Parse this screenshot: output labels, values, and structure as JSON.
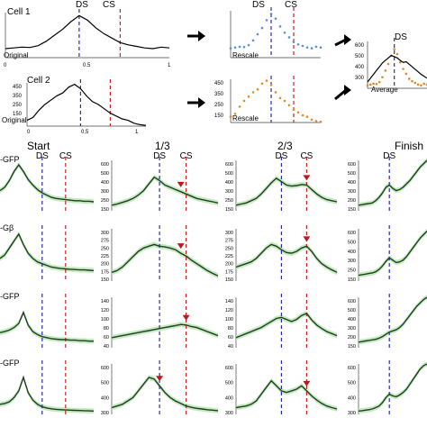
{
  "colors": {
    "axis": "#444444",
    "trace": "#000000",
    "ds_line": "#2a2ab0",
    "cs_line": "#cc2222",
    "rescale_blue": "#5b8fd6",
    "rescale_orange": "#e08a2a",
    "sem_band": "#b7e4b2",
    "mean_trace": "#1d3f1d",
    "arrowhead_marker": "#c01818"
  },
  "top": {
    "cell1": {
      "label": "Cell 1",
      "note": "Original",
      "ds": "DS",
      "cs": "CS",
      "xticks": [
        "0",
        "0.5",
        "1"
      ]
    },
    "cell2": {
      "label": "Cell 2",
      "note": "Original",
      "yticks": [
        "450",
        "350",
        "250",
        "150"
      ],
      "xticks": [
        "0",
        "0.5",
        "1"
      ]
    },
    "rescale1": {
      "note": "Rescale",
      "ds": "DS",
      "cs": "CS"
    },
    "rescale2": {
      "note": "Rescale",
      "yticks": [
        "450",
        "350",
        "250",
        "150"
      ]
    },
    "average": {
      "note": "Average",
      "ds": "DS",
      "yticks": [
        "600",
        "500",
        "400",
        "300"
      ]
    }
  },
  "grid": {
    "columns": [
      {
        "title": "Start",
        "ds": "DS",
        "cs": "CS"
      },
      {
        "title": "1/3",
        "ds": "DS",
        "cs": "CS"
      },
      {
        "title": "2/3",
        "ds": "DS",
        "cs": "CS"
      },
      {
        "title": "Finish",
        "ds": "DS"
      }
    ],
    "rows": [
      {
        "label": "-GFP",
        "yticks": [
          "600",
          "500",
          "400",
          "300",
          "250",
          "150"
        ],
        "yticks_short": [
          "600",
          "500",
          "400",
          "300",
          "200",
          "150"
        ]
      },
      {
        "label": "-Gβ",
        "yticks": [
          "300",
          "275",
          "250",
          "225",
          "200",
          "175",
          "150"
        ],
        "yticks_short": [
          "600",
          "500",
          "400",
          "300",
          "250",
          "150"
        ]
      },
      {
        "label": "-GFP",
        "yticks": [
          "140",
          "120",
          "100",
          "80",
          "60",
          "40"
        ],
        "yticks_short": [
          "600",
          "500",
          "400",
          "300",
          "200",
          "150"
        ]
      },
      {
        "label": "-GFP",
        "yticks": [
          "600",
          "500",
          "400",
          "300"
        ],
        "yticks_short": [
          "600",
          "500",
          "400",
          "300"
        ]
      }
    ]
  },
  "chart_data": {
    "type": "line",
    "x": [
      0,
      0.05,
      0.1,
      0.15,
      0.2,
      0.25,
      0.3,
      0.35,
      0.4,
      0.45,
      0.5,
      0.55,
      0.6,
      0.65,
      0.7,
      0.75,
      0.8,
      0.85,
      0.9,
      0.95,
      1
    ],
    "ds_position": 0.45,
    "cs_position": 0.7,
    "top_traces": {
      "cell1": [
        210,
        215,
        220,
        218,
        230,
        260,
        300,
        340,
        390,
        430,
        400,
        350,
        310,
        280,
        250,
        235,
        225,
        215,
        210,
        220,
        215
      ],
      "cell2": [
        190,
        210,
        260,
        300,
        330,
        360,
        380,
        420,
        440,
        410,
        360,
        320,
        300,
        270,
        240,
        220,
        200,
        190,
        170,
        160,
        155
      ],
      "average": [
        300,
        330,
        360,
        390,
        420,
        450,
        470,
        490,
        510,
        500,
        490,
        470,
        455,
        460,
        440,
        420,
        400,
        380,
        360,
        345,
        330
      ]
    },
    "panels": [
      [
        {
          "ylim": [
            150,
            600
          ],
          "values": [
            330,
            360,
            420,
            500,
            560,
            500,
            430,
            380,
            340,
            310,
            290,
            270,
            260,
            255,
            250,
            245,
            240,
            240,
            235,
            235,
            230
          ]
        },
        {
          "ylim": [
            150,
            600
          ],
          "values": [
            200,
            210,
            225,
            240,
            260,
            290,
            330,
            390,
            450,
            420,
            380,
            360,
            340,
            320,
            300,
            280,
            260,
            250,
            240,
            230,
            220
          ]
        },
        {
          "ylim": [
            150,
            600
          ],
          "values": [
            200,
            210,
            220,
            240,
            260,
            300,
            350,
            400,
            440,
            410,
            380,
            370,
            375,
            385,
            380,
            340,
            300,
            270,
            250,
            240,
            230
          ]
        },
        {
          "ylim": [
            150,
            600
          ],
          "values": [
            200,
            205,
            210,
            215,
            220,
            240,
            270,
            310,
            360,
            380,
            350,
            330,
            340,
            360,
            390,
            420,
            460,
            500,
            540,
            570,
            600
          ]
        }
      ],
      [
        {
          "ylim": [
            150,
            300
          ],
          "values": [
            215,
            225,
            245,
            265,
            285,
            255,
            230,
            215,
            205,
            200,
            195,
            190,
            188,
            186,
            185,
            184,
            183,
            182,
            182,
            181,
            180
          ]
        },
        {
          "ylim": [
            150,
            300
          ],
          "values": [
            175,
            180,
            190,
            205,
            220,
            235,
            245,
            250,
            255,
            250,
            248,
            245,
            240,
            230,
            222,
            210,
            200,
            190,
            180,
            172,
            165
          ]
        },
        {
          "ylim": [
            150,
            300
          ],
          "values": [
            190,
            195,
            200,
            205,
            215,
            230,
            245,
            255,
            250,
            240,
            232,
            230,
            235,
            245,
            250,
            235,
            215,
            200,
            190,
            182,
            175
          ]
        },
        {
          "ylim": [
            150,
            600
          ],
          "values": [
            200,
            205,
            210,
            215,
            220,
            230,
            250,
            280,
            320,
            350,
            330,
            310,
            315,
            330,
            360,
            400,
            440,
            480,
            520,
            550,
            580
          ]
        }
      ],
      [
        {
          "ylim": [
            40,
            140
          ],
          "values": [
            70,
            72,
            75,
            80,
            88,
            110,
            85,
            72,
            66,
            62,
            60,
            58,
            57,
            56,
            56,
            55,
            55,
            54,
            54,
            53,
            53
          ]
        },
        {
          "ylim": [
            40,
            140
          ],
          "values": [
            60,
            62,
            64,
            66,
            68,
            70,
            72,
            74,
            76,
            78,
            80,
            82,
            84,
            86,
            85,
            82,
            80,
            76,
            72,
            68,
            64
          ]
        },
        {
          "ylim": [
            40,
            140
          ],
          "values": [
            60,
            64,
            68,
            72,
            76,
            80,
            86,
            92,
            98,
            100,
            96,
            92,
            96,
            104,
            108,
            95,
            85,
            78,
            72,
            68,
            64
          ]
        },
        {
          "ylim": [
            150,
            600
          ],
          "values": [
            200,
            205,
            210,
            215,
            220,
            225,
            235,
            250,
            270,
            290,
            300,
            310,
            330,
            360,
            400,
            440,
            480,
            520,
            550,
            580,
            600
          ]
        }
      ],
      [
        {
          "ylim": [
            300,
            600
          ],
          "values": [
            360,
            365,
            375,
            400,
            440,
            520,
            430,
            385,
            360,
            345,
            338,
            333,
            330,
            328,
            326,
            325,
            324,
            323,
            322,
            321,
            320
          ]
        },
        {
          "ylim": [
            300,
            600
          ],
          "values": [
            340,
            350,
            360,
            380,
            400,
            440,
            480,
            520,
            510,
            470,
            430,
            400,
            380,
            365,
            350,
            342,
            336,
            332,
            328,
            325,
            322
          ]
        },
        {
          "ylim": [
            300,
            600
          ],
          "values": [
            340,
            345,
            350,
            360,
            380,
            420,
            460,
            500,
            470,
            440,
            430,
            440,
            450,
            470,
            440,
            410,
            385,
            365,
            350,
            340,
            332
          ]
        },
        {
          "ylim": [
            300,
            600
          ],
          "values": [
            320,
            322,
            325,
            328,
            332,
            340,
            350,
            370,
            400,
            420,
            410,
            405,
            415,
            430,
            450,
            480,
            510,
            540,
            570,
            590,
            600
          ]
        }
      ]
    ],
    "arrowheads": [
      {
        "row": 0,
        "col": 1,
        "x": 0.65
      },
      {
        "row": 0,
        "col": 2,
        "x": 0.7
      },
      {
        "row": 1,
        "col": 1,
        "x": 0.65
      },
      {
        "row": 1,
        "col": 2,
        "x": 0.7
      },
      {
        "row": 2,
        "col": 1,
        "x": 0.7
      },
      {
        "row": 3,
        "col": 1,
        "x": 0.45
      },
      {
        "row": 3,
        "col": 2,
        "x": 0.7
      }
    ]
  }
}
